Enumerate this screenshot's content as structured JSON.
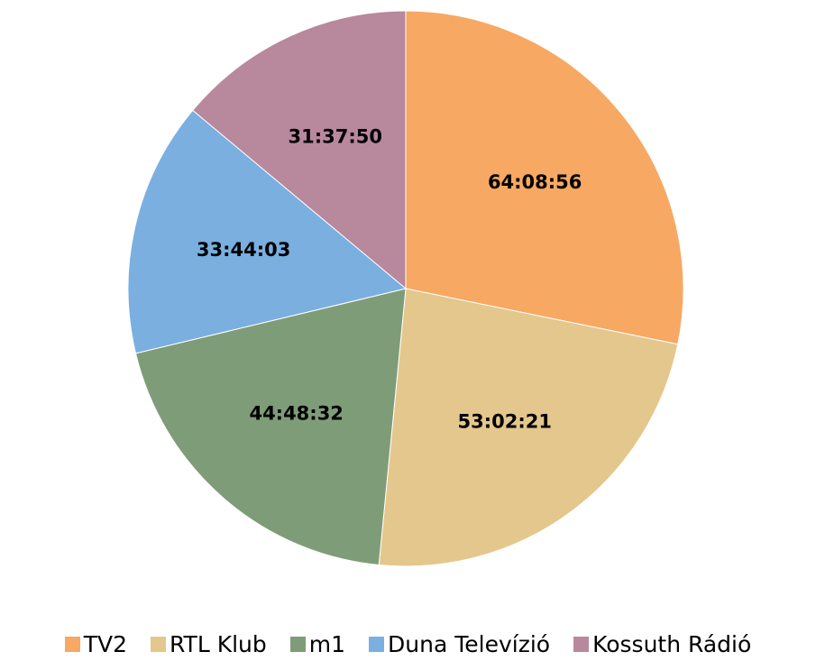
{
  "chart_data": {
    "type": "pie",
    "categories": [
      "TV2",
      "RTL Klub",
      "m1",
      "Duna Televízió",
      "Kossuth Rádió"
    ],
    "values": [
      230936,
      190941,
      161312,
      121443,
      113870
    ],
    "value_labels": [
      "64:08:56",
      "53:02:21",
      "44:48:32",
      "33:44:03",
      "31:37:50"
    ],
    "colors": [
      "#f7a862",
      "#e4c78d",
      "#7f9c78",
      "#7aafe0",
      "#b8889c"
    ],
    "legend": "bottom"
  }
}
